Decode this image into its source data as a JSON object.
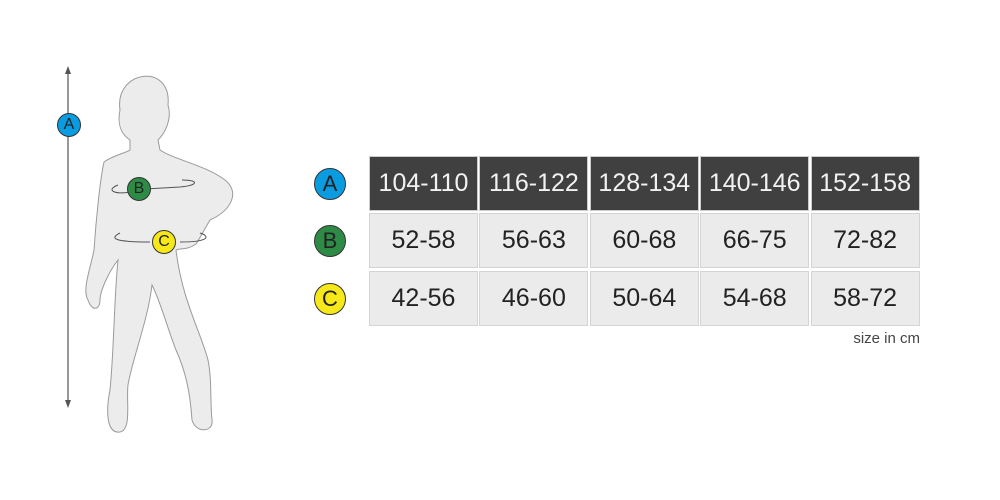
{
  "figure": {
    "labels": [
      "A",
      "B",
      "C"
    ]
  },
  "rows": [
    {
      "label": "A",
      "color": "#0a9ce0",
      "values": [
        "104-110",
        "116-122",
        "128-134",
        "140-146",
        "152-158"
      ]
    },
    {
      "label": "B",
      "color": "#2e8b45",
      "values": [
        "52-58",
        "56-63",
        "60-68",
        "66-75",
        "72-82"
      ]
    },
    {
      "label": "C",
      "color": "#f7e81a",
      "values": [
        "42-56",
        "46-60",
        "50-64",
        "54-68",
        "58-72"
      ]
    }
  ],
  "unit": "size in cm"
}
